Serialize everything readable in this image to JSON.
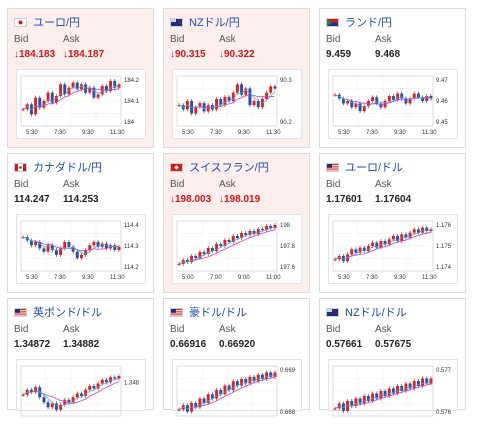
{
  "labels": {
    "bid": "Bid",
    "ask": "Ask"
  },
  "colors": {
    "up": "#e02020",
    "down": "#2b4fa3",
    "ma1": "#d13bd6",
    "ma2": "#2fb6c9"
  },
  "cards": [
    {
      "id": "usdjpy",
      "pair": "ユーロ/円",
      "flag": "jp-flag-icon",
      "dir": "down",
      "bid": "↓184.183",
      "ask": "↓184.187",
      "chart_data": {
        "type": "candlestick",
        "yticks": [
          "184.2",
          "184.1",
          "184"
        ],
        "ylim": [
          183.95,
          184.25
        ],
        "xticks": [
          "5:30",
          "7:30",
          "9:30",
          "11:30"
        ],
        "values": [
          184.05,
          184.08,
          184.02,
          184.12,
          184.06,
          184.1,
          184.15,
          184.09,
          184.13,
          184.2,
          184.14,
          184.18,
          184.21,
          184.17,
          184.2,
          184.15,
          184.18,
          184.12,
          184.14,
          184.19,
          184.16,
          184.22,
          184.18,
          184.2
        ]
      }
    },
    {
      "id": "nzdjpy",
      "pair": "NZドル/円",
      "flag": "nz-flag-icon",
      "dir": "down",
      "bid": "↓90.315",
      "ask": "↓90.322",
      "chart_data": {
        "type": "candlestick",
        "yticks": [
          "90.3",
          "90.2"
        ],
        "ylim": [
          90.12,
          90.36
        ],
        "xticks": [
          "5:30",
          "7:30",
          "9:30",
          "11:30"
        ],
        "values": [
          90.22,
          90.2,
          90.24,
          90.18,
          90.21,
          90.23,
          90.19,
          90.22,
          90.2,
          90.25,
          90.22,
          90.26,
          90.24,
          90.28,
          90.32,
          90.27,
          90.3,
          90.22,
          90.24,
          90.21,
          90.25,
          90.28,
          90.31,
          90.3
        ]
      }
    },
    {
      "id": "zarjpy",
      "pair": "ランド/円",
      "flag": "za-flag-icon",
      "dir": "up",
      "bid": "9.459",
      "ask": "9.468",
      "chart_data": {
        "type": "candlestick",
        "yticks": [
          "9.47",
          "9.46",
          "9.45"
        ],
        "ylim": [
          9.44,
          9.48
        ],
        "xticks": [
          "5:30",
          "7:30",
          "9:30",
          "11:30"
        ],
        "values": [
          9.465,
          9.462,
          9.458,
          9.46,
          9.455,
          9.458,
          9.452,
          9.456,
          9.46,
          9.463,
          9.458,
          9.455,
          9.46,
          9.464,
          9.461,
          9.466,
          9.462,
          9.458,
          9.462,
          9.466,
          9.463,
          9.46,
          9.464,
          9.462
        ]
      }
    },
    {
      "id": "cadjpy",
      "pair": "カナダドル/円",
      "flag": "ca-flag-icon",
      "dir": "up",
      "bid": "114.247",
      "ask": "114.253",
      "chart_data": {
        "type": "candlestick",
        "yticks": [
          "114.4",
          "114.3",
          "114.2"
        ],
        "ylim": [
          114.12,
          114.43
        ],
        "xticks": [
          "5:30",
          "7:30",
          "9:30",
          "11:30"
        ],
        "values": [
          114.33,
          114.31,
          114.28,
          114.3,
          114.26,
          114.24,
          114.28,
          114.25,
          114.22,
          114.26,
          114.3,
          114.27,
          114.24,
          114.2,
          114.22,
          114.25,
          114.28,
          114.3,
          114.27,
          114.29,
          114.26,
          114.28,
          114.25,
          114.27
        ]
      }
    },
    {
      "id": "chfjpy",
      "pair": "スイスフラン/円",
      "flag": "ch-flag-icon",
      "dir": "down",
      "bid": "↓198.003",
      "ask": "↓198.019",
      "chart_data": {
        "type": "candlestick",
        "yticks": [
          "198",
          "197.8",
          "197.6"
        ],
        "ylim": [
          197.55,
          198.05
        ],
        "xticks": [
          "5:00",
          "7:00",
          "9:00",
          "11:00"
        ],
        "values": [
          197.62,
          197.66,
          197.64,
          197.7,
          197.68,
          197.74,
          197.72,
          197.78,
          197.75,
          197.82,
          197.8,
          197.86,
          197.84,
          197.9,
          197.88,
          197.93,
          197.91,
          197.95,
          197.92,
          197.97,
          197.96,
          198.0,
          197.98,
          198.01
        ]
      }
    },
    {
      "id": "eurusd",
      "pair": "ユーロ/ドル",
      "flag": "eu-flag-icon",
      "dir": "up",
      "bid": "1.17601",
      "ask": "1.17604",
      "chart_data": {
        "type": "candlestick",
        "yticks": [
          "1.176",
          "1.175",
          "1.174"
        ],
        "ylim": [
          1.1735,
          1.1765
        ],
        "xticks": [
          "5:30",
          "7:30",
          "9:30",
          "11:30"
        ],
        "values": [
          1.1742,
          1.1744,
          1.1741,
          1.1745,
          1.1748,
          1.1746,
          1.1749,
          1.1747,
          1.175,
          1.1752,
          1.1749,
          1.1753,
          1.1751,
          1.1754,
          1.1756,
          1.1753,
          1.1757,
          1.1755,
          1.1758,
          1.176,
          1.1758,
          1.1761,
          1.1759,
          1.176
        ]
      }
    },
    {
      "id": "gbpusd",
      "pair": "英ポンド/ドル",
      "flag": "gb-flag-icon",
      "dir": "up",
      "bid": "1.34872",
      "ask": "1.34882",
      "chart_data": {
        "type": "candlestick",
        "yticks": [
          "1.348"
        ],
        "ylim": [
          1.3455,
          1.3495
        ],
        "xticks": [],
        "values": [
          1.3472,
          1.3476,
          1.3474,
          1.3478,
          1.347,
          1.3466,
          1.3462,
          1.3465,
          1.346,
          1.3464,
          1.3468,
          1.3466,
          1.347,
          1.3473,
          1.3471,
          1.3476,
          1.3479,
          1.3477,
          1.3481,
          1.3484,
          1.3482,
          1.3486,
          1.3485,
          1.3487
        ]
      }
    },
    {
      "id": "audusd",
      "pair": "豪ドル/ドル",
      "flag": "au-flag-icon",
      "dir": "up",
      "bid": "0.66916",
      "ask": "0.66920",
      "chart_data": {
        "type": "candlestick",
        "yticks": [
          "0.669",
          "0.668"
        ],
        "ylim": [
          0.6672,
          0.6695
        ],
        "xticks": [],
        "values": [
          0.6675,
          0.6677,
          0.6674,
          0.6678,
          0.6676,
          0.668,
          0.6678,
          0.6682,
          0.668,
          0.6684,
          0.6682,
          0.6686,
          0.6684,
          0.6688,
          0.6686,
          0.6689,
          0.6687,
          0.669,
          0.6688,
          0.6691,
          0.6689,
          0.6692,
          0.669,
          0.6692
        ]
      }
    },
    {
      "id": "nzdusd",
      "pair": "NZドル/ドル",
      "flag": "nz-flag-icon",
      "dir": "up",
      "bid": "0.57661",
      "ask": "0.57675",
      "chart_data": {
        "type": "candlestick",
        "yticks": [
          "0.577",
          "0.576"
        ],
        "ylim": [
          0.5752,
          0.5772
        ],
        "xticks": [],
        "values": [
          0.5755,
          0.5757,
          0.5754,
          0.5758,
          0.5756,
          0.5759,
          0.5757,
          0.576,
          0.5758,
          0.5761,
          0.5759,
          0.5762,
          0.576,
          0.5763,
          0.5761,
          0.5764,
          0.5762,
          0.5765,
          0.5763,
          0.5766,
          0.5764,
          0.5767,
          0.5765,
          0.5767
        ]
      }
    }
  ]
}
